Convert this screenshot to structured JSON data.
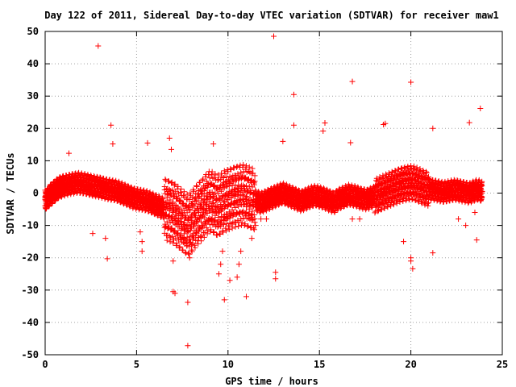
{
  "chart_data": {
    "type": "scatter",
    "title": "Day 122 of 2011, Sidereal Day-to-day VTEC variation (SDTVAR) for receiver maw1",
    "xlabel": "GPS time / hours",
    "ylabel": "SDTVAR / TECUs",
    "xlim": [
      0,
      25
    ],
    "ylim": [
      -50,
      50
    ],
    "xticks": [
      "0",
      "5",
      "10",
      "15",
      "20",
      "25"
    ],
    "yticks": [
      "50",
      "40",
      "30",
      "20",
      "10",
      "0",
      "-10",
      "-20",
      "-30",
      "-40",
      "-50"
    ],
    "grid": true,
    "marker": "+",
    "color": "#ff0000",
    "series": [
      {
        "values_x": [
          0.0,
          0.1,
          0.2,
          0.3,
          0.4,
          0.5,
          0.6,
          0.7,
          0.8,
          0.9,
          1.0,
          1.2,
          1.4,
          1.6,
          1.8,
          2.0,
          2.2,
          2.4,
          2.6,
          2.8,
          3.0,
          3.2,
          3.4,
          3.6,
          3.8,
          4.0,
          4.2,
          4.4,
          4.6,
          4.8,
          5.0,
          5.2,
          5.4,
          5.6,
          5.8,
          6.0,
          6.2,
          6.4,
          6.6,
          6.8,
          7.0,
          7.2,
          7.4,
          7.6,
          7.8,
          8.0,
          8.2,
          8.4,
          8.6,
          8.8,
          9.0,
          9.2,
          9.4,
          9.6,
          9.8,
          10.0,
          10.2,
          10.4,
          10.6,
          10.8,
          11.0,
          11.2,
          11.4,
          11.6,
          11.8,
          12.0,
          12.2,
          12.4,
          12.6,
          12.8,
          13.0,
          13.2,
          13.4,
          13.6,
          13.8,
          14.0,
          14.2,
          14.4,
          14.6,
          14.8,
          15.0,
          15.2,
          15.4,
          15.6,
          15.8,
          16.0,
          16.2,
          16.4,
          16.6,
          16.8,
          17.0,
          17.2,
          17.4,
          17.6,
          17.8,
          18.0,
          18.2,
          18.4,
          18.6,
          18.8,
          19.0,
          19.2,
          19.4,
          19.6,
          19.8,
          20.0,
          20.2,
          20.4,
          20.6,
          20.8,
          21.0,
          21.2,
          21.4,
          21.6,
          21.8,
          22.0,
          22.2,
          22.4,
          22.6,
          22.8,
          23.0,
          23.2,
          23.4,
          23.6,
          23.8,
          23.9,
          2.9,
          3.6,
          3.7,
          12.5,
          13.6,
          13.6,
          16.8,
          20.0,
          21.2,
          23.2,
          23.8,
          13.0,
          15.2,
          15.3,
          16.7,
          18.6,
          18.5,
          1.3,
          5.6,
          6.8,
          6.9,
          7.0,
          7.1,
          7.8,
          7.8,
          7.0,
          9.8,
          10.1,
          11.0,
          12.6,
          12.6,
          2.6,
          3.3,
          3.4,
          20.0,
          20.1,
          21.2,
          23.6,
          9.2,
          20.0,
          19.6,
          5.2,
          5.3,
          5.3,
          7.6,
          7.9,
          8.0,
          9.5,
          9.6,
          9.7,
          10.5,
          10.6,
          10.7,
          11.3,
          11.5,
          11.8,
          12.1,
          16.8,
          17.2,
          22.6,
          23.0,
          23.5
        ],
        "values_y": [
          -1.5,
          -2.0,
          -1.0,
          -0.5,
          0.0,
          0.5,
          1.0,
          1.5,
          1.8,
          2.0,
          2.2,
          2.5,
          2.8,
          3.0,
          3.2,
          3.0,
          2.8,
          2.5,
          2.2,
          2.0,
          1.8,
          1.5,
          1.2,
          1.0,
          0.8,
          0.5,
          0.0,
          -0.5,
          -1.0,
          -1.5,
          -1.8,
          -2.0,
          -2.2,
          -2.5,
          -3.0,
          -3.5,
          -4.0,
          -4.5,
          -5.0,
          -5.5,
          -6.0,
          -7.0,
          -8.0,
          -9.0,
          -10.0,
          -9.0,
          -7.5,
          -6.0,
          -5.0,
          -3.5,
          -2.5,
          -3.0,
          -4.0,
          -3.5,
          -2.5,
          -2.0,
          -1.5,
          -1.0,
          -0.8,
          -0.5,
          -1.0,
          -1.5,
          -2.0,
          -2.5,
          -3.0,
          -2.5,
          -2.0,
          -1.5,
          -1.0,
          -0.5,
          0.0,
          -0.5,
          -1.0,
          -1.5,
          -2.0,
          -2.5,
          -2.0,
          -1.5,
          -1.0,
          -0.8,
          -1.2,
          -1.5,
          -2.0,
          -2.5,
          -3.0,
          -2.0,
          -1.5,
          -1.0,
          -0.5,
          -0.8,
          -1.0,
          -1.5,
          -1.8,
          -2.0,
          -1.5,
          -1.0,
          -0.5,
          0.0,
          0.5,
          1.0,
          1.5,
          2.0,
          2.5,
          2.8,
          3.0,
          3.2,
          3.0,
          2.5,
          2.0,
          1.5,
          1.2,
          1.0,
          0.8,
          0.5,
          0.3,
          0.5,
          0.8,
          1.0,
          0.8,
          0.5,
          0.3,
          0.0,
          0.5,
          1.0,
          0.8,
          0.5,
          45.5,
          21.0,
          15.2,
          48.5,
          30.5,
          21.0,
          34.5,
          34.3,
          20.0,
          21.8,
          26.2,
          16.0,
          19.2,
          21.7,
          15.6,
          21.5,
          21.2,
          12.3,
          15.5,
          17.0,
          13.5,
          -30.5,
          -31.0,
          -33.8,
          -47.2,
          -21.0,
          -33.0,
          -27.0,
          -32.0,
          -26.5,
          -24.5,
          -12.5,
          -14.0,
          -20.3,
          -21.0,
          -23.4,
          -18.5,
          -14.5,
          15.2,
          -20.0,
          -15.0,
          -12.0,
          -15.0,
          -18.0,
          -14.0,
          -20.0,
          -16.0,
          -25.0,
          -22.0,
          -18.0,
          -26.0,
          -22.0,
          -18.0,
          -14.0,
          -10.0,
          -8.0,
          -8.0,
          -8.0,
          -8.0,
          -8.0,
          -10.0,
          -6.0
        ]
      }
    ]
  }
}
